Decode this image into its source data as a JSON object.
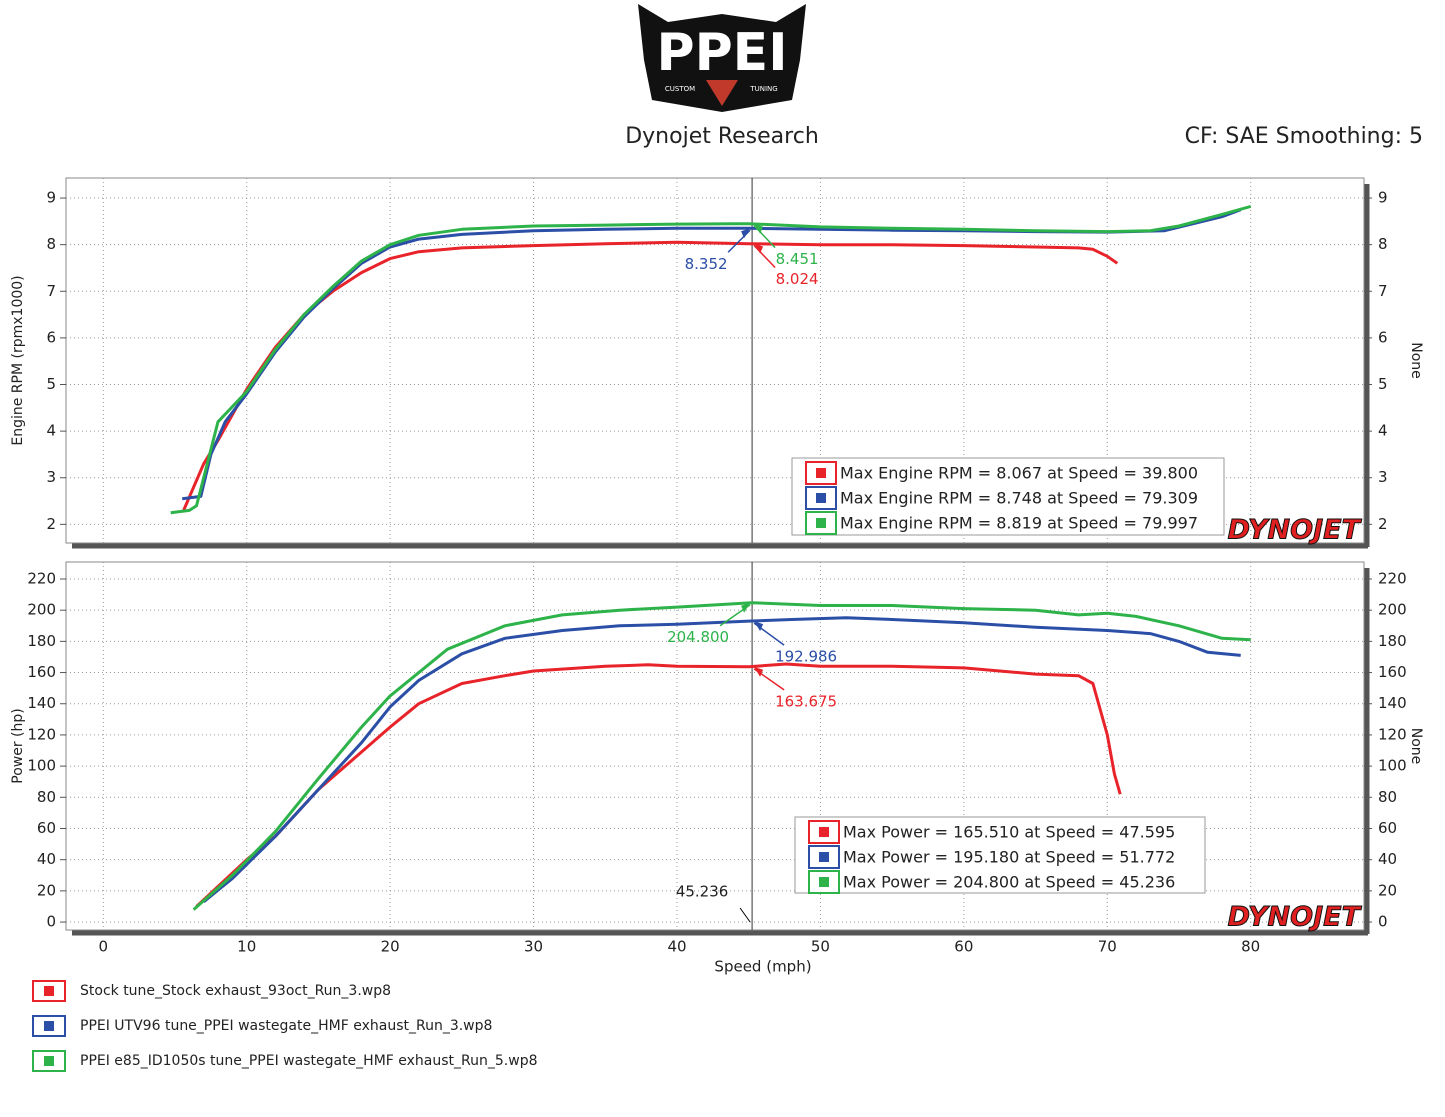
{
  "header": {
    "logo": "PPEI",
    "logo_left": "CUSTOM",
    "logo_right": "TUNING",
    "title": "Dynojet Research",
    "settings": "CF: SAE Smoothing: 5",
    "watermark": "DYNOJET"
  },
  "files": [
    {
      "name": "Stock tune_Stock exhaust_93oct_Run_3.wp8",
      "color": "#e8232a"
    },
    {
      "name": "PPEI UTV96 tune_PPEI wastegate_HMF exhaust_Run_3.wp8",
      "color": "#2b4ea6"
    },
    {
      "name": "PPEI e85_ID1050s tune_PPEI wastegate_HMF exhaust_Run_5.wp8",
      "color": "#2db34a"
    }
  ],
  "chart_data": [
    {
      "type": "line",
      "ylabel": "Engine RPM (rpmx1000)",
      "y2label": "None",
      "xlim": [
        -2.6,
        87.9
      ],
      "xticks": [
        0,
        10,
        20,
        30,
        40,
        50,
        60,
        70,
        80
      ],
      "show_xtick_labels": false,
      "ylim": [
        1.6,
        9.43
      ],
      "yticks": [
        2,
        3,
        4,
        5,
        6,
        7,
        8,
        9
      ],
      "y2lim": [
        1.6,
        9.43
      ],
      "y2ticks": [
        2,
        3,
        4,
        5,
        6,
        7,
        8,
        9
      ],
      "grid": true,
      "cursor": 45.236,
      "series": [
        {
          "name": "Stock",
          "color": "#e8232a",
          "x": [
            5.6,
            7,
            8,
            10,
            12,
            14,
            16,
            18,
            20,
            22,
            25,
            30,
            35,
            40,
            45,
            50,
            55,
            60,
            65,
            68,
            69,
            70,
            70.7
          ],
          "values": [
            2.3,
            3.3,
            3.8,
            4.9,
            5.8,
            6.5,
            7.0,
            7.4,
            7.7,
            7.85,
            7.93,
            7.98,
            8.02,
            8.05,
            8.02,
            8.0,
            8.0,
            7.98,
            7.95,
            7.93,
            7.9,
            7.75,
            7.6
          ]
        },
        {
          "name": "UTV96",
          "color": "#2b4ea6",
          "x": [
            5.5,
            6.8,
            7.5,
            8.5,
            10,
            12,
            14,
            16,
            18,
            20,
            22,
            25,
            30,
            35,
            40,
            45,
            50,
            55,
            60,
            65,
            70,
            74,
            76,
            78,
            79.3
          ],
          "values": [
            2.55,
            2.6,
            3.5,
            4.2,
            4.8,
            5.7,
            6.45,
            7.05,
            7.6,
            7.95,
            8.12,
            8.22,
            8.3,
            8.33,
            8.35,
            8.35,
            8.33,
            8.31,
            8.3,
            8.28,
            8.27,
            8.3,
            8.45,
            8.6,
            8.75
          ]
        },
        {
          "name": "e85",
          "color": "#2db34a",
          "x": [
            4.7,
            6,
            6.5,
            7,
            8,
            10,
            12,
            14,
            16,
            18,
            20,
            22,
            25,
            30,
            35,
            40,
            44,
            45,
            50,
            55,
            60,
            65,
            70,
            73,
            75,
            78,
            80
          ],
          "values": [
            2.25,
            2.3,
            2.4,
            3.0,
            4.2,
            4.85,
            5.75,
            6.5,
            7.1,
            7.65,
            8.0,
            8.2,
            8.33,
            8.4,
            8.42,
            8.44,
            8.45,
            8.45,
            8.38,
            8.35,
            8.33,
            8.3,
            8.28,
            8.3,
            8.4,
            8.65,
            8.82
          ]
        }
      ],
      "annotations": [
        {
          "text": "8.352",
          "value": 8.352,
          "color": "#2b4ea6"
        },
        {
          "text": "8.451",
          "value": 8.451,
          "color": "#2db34a"
        },
        {
          "text": "8.024",
          "value": 8.024,
          "color": "#e8232a"
        }
      ],
      "stats": [
        "Max Engine RPM = 8.067 at Speed = 39.800",
        "Max Engine RPM = 8.748 at Speed = 79.309",
        "Max Engine RPM = 8.819 at Speed = 79.997"
      ]
    },
    {
      "type": "line",
      "ylabel": "Power (hp)",
      "y2label": "None",
      "xlabel": "Speed (mph)",
      "xlim": [
        -2.6,
        87.9
      ],
      "xticks": [
        0,
        10,
        20,
        30,
        40,
        50,
        60,
        70,
        80
      ],
      "show_xtick_labels": true,
      "ylim": [
        -5.1,
        230.9
      ],
      "yticks": [
        0,
        20,
        40,
        60,
        80,
        100,
        120,
        140,
        160,
        180,
        200,
        220
      ],
      "y2lim": [
        -5.1,
        230.9
      ],
      "y2ticks": [
        0,
        20,
        40,
        60,
        80,
        100,
        120,
        140,
        160,
        180,
        200,
        220
      ],
      "grid": true,
      "cursor": 45.236,
      "series": [
        {
          "name": "Stock",
          "color": "#e8232a",
          "x": [
            6.5,
            10,
            12,
            15,
            20,
            22,
            25,
            28,
            30,
            35,
            38,
            40,
            45,
            47.6,
            50,
            55,
            60,
            65,
            68,
            69,
            70,
            70.5,
            70.9
          ],
          "values": [
            10,
            40,
            55,
            85,
            125,
            140,
            153,
            158,
            161,
            164,
            165,
            164,
            163.7,
            165.5,
            164,
            164,
            163,
            159,
            158,
            153,
            120,
            95,
            82
          ]
        },
        {
          "name": "UTV96",
          "color": "#2b4ea6",
          "x": [
            7,
            9,
            12,
            15,
            18,
            20,
            22,
            25,
            28,
            32,
            36,
            40,
            45,
            48,
            51.8,
            55,
            60,
            65,
            70,
            73,
            75,
            77,
            79.3
          ],
          "values": [
            13,
            28,
            55,
            85,
            115,
            138,
            155,
            172,
            182,
            187,
            190,
            191,
            193,
            194,
            195.2,
            194,
            192,
            189,
            187,
            185,
            180,
            173,
            171
          ]
        },
        {
          "name": "e85",
          "color": "#2db34a",
          "x": [
            6.3,
            9,
            12,
            15,
            18,
            20,
            24,
            28,
            32,
            36,
            40,
            45.2,
            50,
            55,
            60,
            65,
            68,
            70,
            72,
            75,
            78,
            80
          ],
          "values": [
            8,
            30,
            58,
            92,
            125,
            145,
            175,
            190,
            197,
            200,
            202,
            204.8,
            203,
            203,
            201,
            200,
            197,
            198,
            196,
            190,
            182,
            181
          ]
        }
      ],
      "annotations": [
        {
          "text": "204.800",
          "value": 204.8,
          "color": "#2db34a"
        },
        {
          "text": "192.986",
          "value": 192.986,
          "color": "#2b4ea6"
        },
        {
          "text": "163.675",
          "value": 163.675,
          "color": "#e8232a"
        }
      ],
      "stats": [
        "Max Power = 165.510 at Speed = 47.595",
        "Max Power = 195.180 at Speed = 51.772",
        "Max Power = 204.800 at Speed = 45.236"
      ]
    }
  ]
}
